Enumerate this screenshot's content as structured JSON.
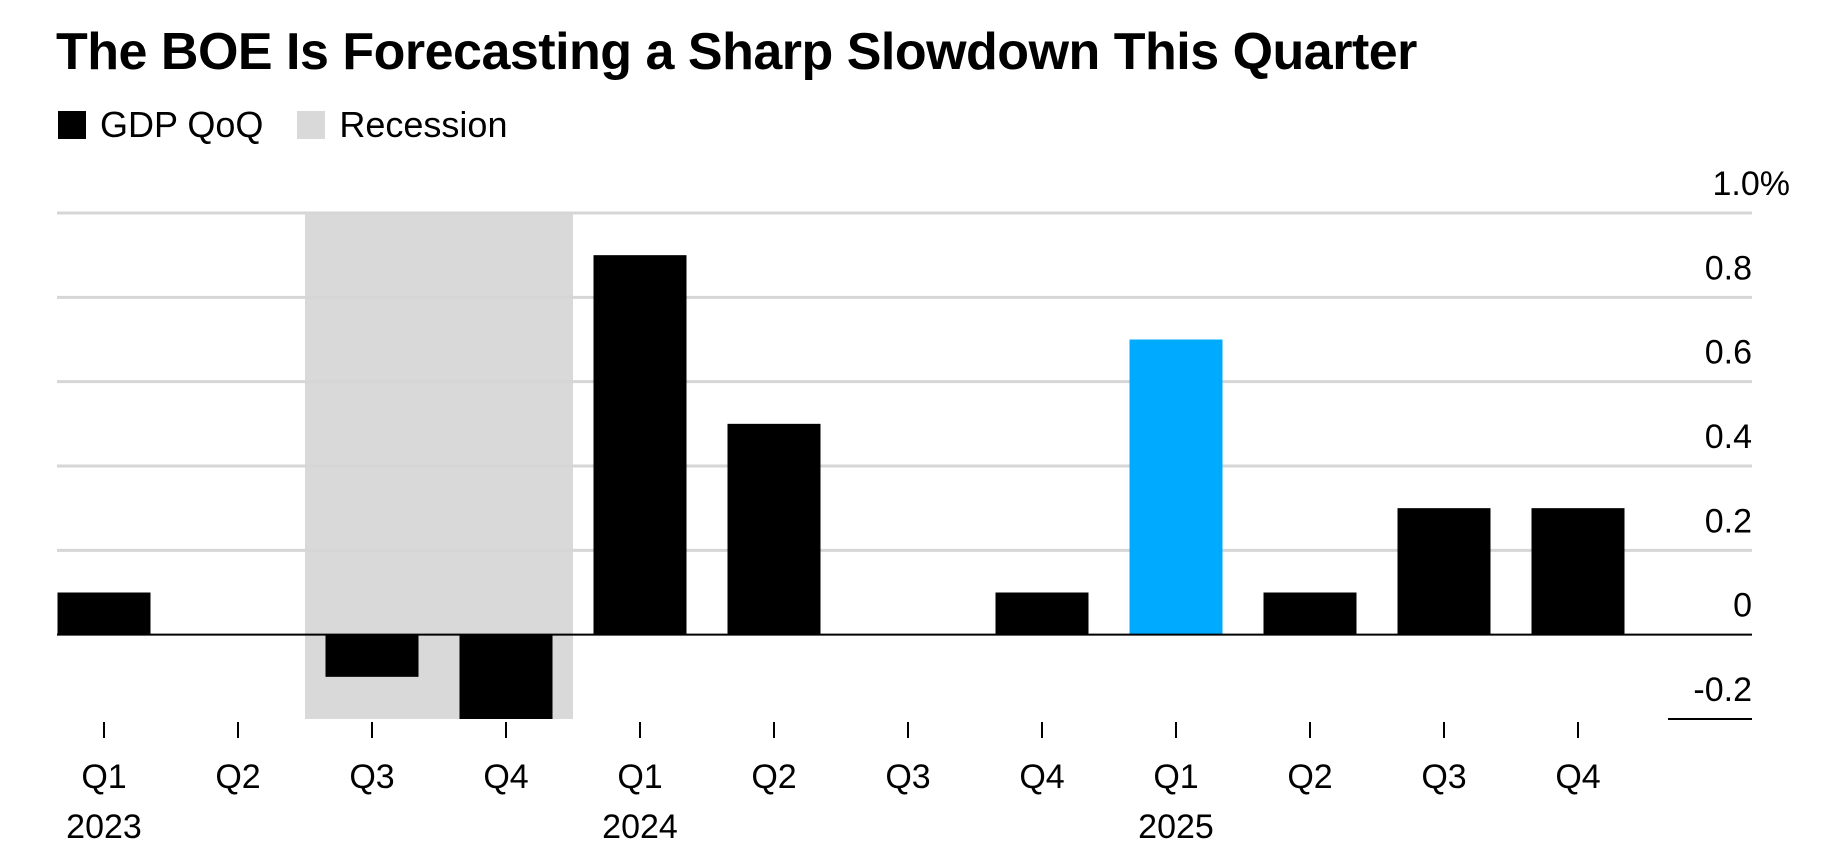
{
  "chart_data": {
    "type": "bar",
    "title": "The BOE Is Forecasting a Sharp Slowdown This Quarter",
    "legend": [
      {
        "label": "GDP QoQ",
        "color": "#000000"
      },
      {
        "label": "Recession",
        "color": "#d9d9d9"
      }
    ],
    "categories": [
      "Q1",
      "Q2",
      "Q3",
      "Q4",
      "Q1",
      "Q2",
      "Q3",
      "Q4",
      "Q1",
      "Q2",
      "Q3",
      "Q4"
    ],
    "years": [
      {
        "label": "2023",
        "index": 0
      },
      {
        "label": "2024",
        "index": 4
      },
      {
        "label": "2025",
        "index": 8
      }
    ],
    "series": [
      {
        "name": "GDP QoQ",
        "values": [
          0.1,
          0.0,
          -0.1,
          -0.2,
          0.9,
          0.5,
          0.0,
          0.1,
          0.7,
          0.1,
          0.3,
          0.3
        ]
      }
    ],
    "highlight_index": 8,
    "bar_color": "#000000",
    "highlight_color": "#00aaff",
    "recession_shading": {
      "from_index": 2,
      "to_index": 3,
      "color": "#d9d9d9"
    },
    "y_axis": {
      "position": "right",
      "ylim": [
        -0.2,
        1.0
      ],
      "ticks": [
        {
          "value": 1.0,
          "label": "1.0%"
        },
        {
          "value": 0.8,
          "label": "0.8"
        },
        {
          "value": 0.6,
          "label": "0.6"
        },
        {
          "value": 0.4,
          "label": "0.4"
        },
        {
          "value": 0.2,
          "label": "0.2"
        },
        {
          "value": 0.0,
          "label": "0"
        },
        {
          "value": -0.2,
          "label": "-0.2"
        }
      ]
    },
    "grid": true,
    "legend_placement": "top-left"
  }
}
